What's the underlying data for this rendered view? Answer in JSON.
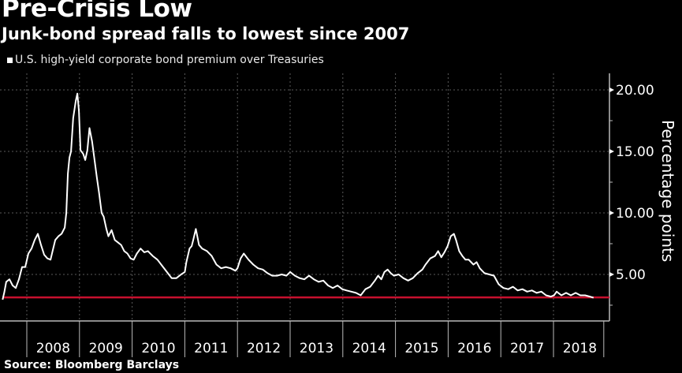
{
  "title": "Pre-Crisis Low",
  "subtitle": "Junk-bond spread falls to lowest since 2007",
  "source": "Source: Bloomberg Barclays",
  "colors": {
    "background": "#000000",
    "series": "#ffffff",
    "reference_line": "#c8102e",
    "grid": "#666666",
    "axis": "#bbbbbb"
  },
  "chart_data": {
    "type": "line",
    "title": "Pre-Crisis Low",
    "subtitle": "Junk-bond spread falls to lowest since 2007",
    "xlabel": "",
    "ylabel": "Percentage points",
    "legend": {
      "placement": "top-left",
      "entries": [
        "U.S. high-yield corporate bond premium over Treasuries"
      ]
    },
    "x_ticks": [
      "2008",
      "2009",
      "2010",
      "2011",
      "2012",
      "2013",
      "2014",
      "2015",
      "2016",
      "2017",
      "2018"
    ],
    "xlim": [
      2007.49,
      2019.1
    ],
    "y_ticks": [
      "5.00",
      "10.00",
      "15.00",
      "20.00"
    ],
    "y_tick_values": [
      5,
      10,
      15,
      20
    ],
    "ylim": [
      1.25,
      22.5
    ],
    "y_axis_side": "right",
    "grid": true,
    "reference_line": {
      "value": 3.13,
      "label": "",
      "color": "#c8102e"
    },
    "series": [
      {
        "name": "U.S. high-yield corporate bond premium over Treasuries",
        "x": [
          2007.54,
          2007.57,
          2007.61,
          2007.67,
          2007.73,
          2007.79,
          2007.85,
          2007.91,
          2007.97,
          2008.03,
          2008.09,
          2008.15,
          2008.21,
          2008.27,
          2008.33,
          2008.39,
          2008.45,
          2008.49,
          2008.54,
          2008.6,
          2008.66,
          2008.72,
          2008.75,
          2008.78,
          2008.81,
          2008.84,
          2008.88,
          2008.93,
          2008.96,
          2008.99,
          2009.02,
          2009.07,
          2009.11,
          2009.15,
          2009.19,
          2009.24,
          2009.28,
          2009.33,
          2009.37,
          2009.42,
          2009.46,
          2009.51,
          2009.55,
          2009.61,
          2009.67,
          2009.73,
          2009.79,
          2009.85,
          2009.91,
          2009.97,
          2010.03,
          2010.09,
          2010.16,
          2010.23,
          2010.3,
          2010.39,
          2010.48,
          2010.57,
          2010.66,
          2010.75,
          2010.84,
          2010.93,
          2011.0,
          2011.03,
          2011.09,
          2011.13,
          2011.16,
          2011.21,
          2011.27,
          2011.33,
          2011.42,
          2011.51,
          2011.6,
          2011.69,
          2011.78,
          2011.87,
          2011.96,
          2012.0,
          2012.06,
          2012.12,
          2012.21,
          2012.3,
          2012.39,
          2012.48,
          2012.57,
          2012.66,
          2012.75,
          2012.84,
          2012.93,
          2013.0,
          2013.09,
          2013.18,
          2013.27,
          2013.36,
          2013.45,
          2013.54,
          2013.63,
          2013.72,
          2013.81,
          2013.9,
          2013.99,
          2014.07,
          2014.16,
          2014.25,
          2014.34,
          2014.43,
          2014.52,
          2014.61,
          2014.67,
          2014.73,
          2014.79,
          2014.85,
          2014.91,
          2014.97,
          2015.06,
          2015.15,
          2015.24,
          2015.33,
          2015.42,
          2015.51,
          2015.57,
          2015.66,
          2015.75,
          2015.81,
          2015.87,
          2015.93,
          2015.99,
          2016.05,
          2016.11,
          2016.15,
          2016.21,
          2016.27,
          2016.33,
          2016.39,
          2016.48,
          2016.54,
          2016.6,
          2016.69,
          2016.78,
          2016.87,
          2016.96,
          2017.05,
          2017.14,
          2017.23,
          2017.32,
          2017.41,
          2017.5,
          2017.59,
          2017.68,
          2017.77,
          2017.86,
          2017.95,
          2018.01,
          2018.06,
          2018.15,
          2018.24,
          2018.33,
          2018.42,
          2018.51,
          2018.6,
          2018.69,
          2018.76
        ],
        "y": [
          2.95,
          3.5,
          4.4,
          4.6,
          4.1,
          3.9,
          4.6,
          5.6,
          5.6,
          6.7,
          7.1,
          7.8,
          8.3,
          7.4,
          6.6,
          6.3,
          6.2,
          6.9,
          7.8,
          8.1,
          8.3,
          8.8,
          10.0,
          13.2,
          14.5,
          15.0,
          17.7,
          19.1,
          19.7,
          18.3,
          15.1,
          14.8,
          14.3,
          15.1,
          16.9,
          15.8,
          14.5,
          12.9,
          11.7,
          10.0,
          9.7,
          8.7,
          8.1,
          8.6,
          7.8,
          7.6,
          7.4,
          6.9,
          6.7,
          6.3,
          6.2,
          6.7,
          7.1,
          6.8,
          6.9,
          6.5,
          6.2,
          5.7,
          5.2,
          4.7,
          4.7,
          5.0,
          5.2,
          6.0,
          7.1,
          7.3,
          7.8,
          8.7,
          7.4,
          7.1,
          6.9,
          6.5,
          5.8,
          5.5,
          5.6,
          5.5,
          5.3,
          5.5,
          6.3,
          6.7,
          6.2,
          5.8,
          5.5,
          5.4,
          5.1,
          4.9,
          4.9,
          5.0,
          4.9,
          5.2,
          4.9,
          4.7,
          4.6,
          4.9,
          4.6,
          4.4,
          4.5,
          4.1,
          3.9,
          4.1,
          3.8,
          3.7,
          3.6,
          3.5,
          3.3,
          3.8,
          4.0,
          4.5,
          4.9,
          4.6,
          5.2,
          5.4,
          5.1,
          4.9,
          5.0,
          4.7,
          4.5,
          4.7,
          5.1,
          5.4,
          5.8,
          6.3,
          6.5,
          6.9,
          6.4,
          6.8,
          7.3,
          8.1,
          8.3,
          7.8,
          6.9,
          6.5,
          6.2,
          6.2,
          5.8,
          6.0,
          5.5,
          5.1,
          5.0,
          4.9,
          4.2,
          3.9,
          3.8,
          4.0,
          3.7,
          3.8,
          3.6,
          3.7,
          3.5,
          3.6,
          3.3,
          3.2,
          3.3,
          3.6,
          3.3,
          3.5,
          3.3,
          3.5,
          3.3,
          3.3,
          3.2,
          3.1
        ]
      }
    ]
  }
}
